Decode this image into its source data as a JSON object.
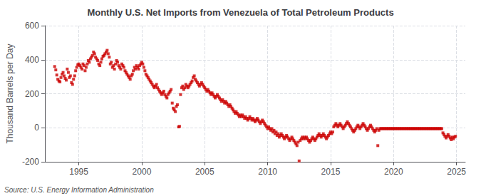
{
  "chart_data": {
    "type": "scatter",
    "title": "Monthly U.S. Net Imports from Venezuela of Total Petroleum Products",
    "ylabel": "Thousand Barrels per Day",
    "annotations": [
      "Source: U.S. Energy Information Administration"
    ],
    "color": "#cc0000",
    "marker": "square",
    "grid": true,
    "xlim": [
      1992.3,
      2025.7
    ],
    "xticks": [
      1995,
      2000,
      2005,
      2010,
      2015,
      2020,
      2025
    ],
    "ylim": [
      -200,
      600
    ],
    "yticks": [
      -200,
      0,
      200,
      400,
      600
    ],
    "x": [
      1993.08,
      1993.17,
      1993.25,
      1993.33,
      1993.42,
      1993.5,
      1993.58,
      1993.67,
      1993.75,
      1993.83,
      1993.92,
      1994.0,
      1994.08,
      1994.17,
      1994.25,
      1994.33,
      1994.42,
      1994.5,
      1994.58,
      1994.67,
      1994.75,
      1994.83,
      1994.92,
      1995.0,
      1995.08,
      1995.17,
      1995.25,
      1995.33,
      1995.42,
      1995.5,
      1995.58,
      1995.67,
      1995.75,
      1995.83,
      1995.92,
      1996.0,
      1996.08,
      1996.17,
      1996.25,
      1996.33,
      1996.42,
      1996.5,
      1996.58,
      1996.67,
      1996.75,
      1996.83,
      1996.92,
      1997.0,
      1997.08,
      1997.17,
      1997.25,
      1997.33,
      1997.42,
      1997.5,
      1997.58,
      1997.67,
      1997.75,
      1997.83,
      1997.92,
      1998.0,
      1998.08,
      1998.17,
      1998.25,
      1998.33,
      1998.42,
      1998.5,
      1998.58,
      1998.67,
      1998.75,
      1998.83,
      1998.92,
      1999.0,
      1999.08,
      1999.17,
      1999.25,
      1999.33,
      1999.42,
      1999.5,
      1999.58,
      1999.67,
      1999.75,
      1999.83,
      1999.92,
      2000.0,
      2000.08,
      2000.17,
      2000.25,
      2000.33,
      2000.42,
      2000.5,
      2000.58,
      2000.67,
      2000.75,
      2000.83,
      2000.92,
      2001.0,
      2001.08,
      2001.17,
      2001.25,
      2001.33,
      2001.42,
      2001.5,
      2001.58,
      2001.67,
      2001.75,
      2001.83,
      2001.92,
      2002.0,
      2002.08,
      2002.17,
      2002.25,
      2002.33,
      2002.42,
      2002.5,
      2002.58,
      2002.67,
      2002.75,
      2002.83,
      2002.92,
      2003.0,
      2003.08,
      2003.17,
      2003.25,
      2003.33,
      2003.42,
      2003.5,
      2003.58,
      2003.67,
      2003.75,
      2003.83,
      2003.92,
      2004.0,
      2004.08,
      2004.17,
      2004.25,
      2004.33,
      2004.42,
      2004.5,
      2004.58,
      2004.67,
      2004.75,
      2004.83,
      2004.92,
      2005.0,
      2005.08,
      2005.17,
      2005.25,
      2005.33,
      2005.42,
      2005.5,
      2005.58,
      2005.67,
      2005.75,
      2005.83,
      2005.92,
      2006.0,
      2006.08,
      2006.17,
      2006.25,
      2006.33,
      2006.42,
      2006.5,
      2006.58,
      2006.67,
      2006.75,
      2006.83,
      2006.92,
      2007.0,
      2007.08,
      2007.17,
      2007.25,
      2007.33,
      2007.42,
      2007.5,
      2007.58,
      2007.67,
      2007.75,
      2007.83,
      2007.92,
      2008.0,
      2008.08,
      2008.17,
      2008.25,
      2008.33,
      2008.42,
      2008.5,
      2008.58,
      2008.67,
      2008.75,
      2008.83,
      2008.92,
      2009.0,
      2009.08,
      2009.17,
      2009.25,
      2009.33,
      2009.42,
      2009.5,
      2009.58,
      2009.67,
      2009.75,
      2009.83,
      2009.92,
      2010.0,
      2010.08,
      2010.17,
      2010.25,
      2010.33,
      2010.42,
      2010.5,
      2010.58,
      2010.67,
      2010.75,
      2010.83,
      2010.92,
      2011.0,
      2011.08,
      2011.17,
      2011.25,
      2011.33,
      2011.42,
      2011.5,
      2011.58,
      2011.67,
      2011.75,
      2011.83,
      2011.92,
      2012.0,
      2012.08,
      2012.17,
      2012.25,
      2012.33,
      2012.42,
      2012.5,
      2012.58,
      2012.67,
      2012.75,
      2012.83,
      2012.92,
      2013.0,
      2013.08,
      2013.17,
      2013.25,
      2013.33,
      2013.42,
      2013.5,
      2013.58,
      2013.67,
      2013.75,
      2013.83,
      2013.92,
      2014.0,
      2014.08,
      2014.17,
      2014.25,
      2014.33,
      2014.42,
      2014.5,
      2014.58,
      2014.67,
      2014.75,
      2014.83,
      2014.92,
      2015.0,
      2015.08,
      2015.17,
      2015.25,
      2015.33,
      2015.42,
      2015.5,
      2015.58,
      2015.67,
      2015.75,
      2015.83,
      2015.92,
      2016.0,
      2016.08,
      2016.17,
      2016.25,
      2016.33,
      2016.42,
      2016.5,
      2016.58,
      2016.67,
      2016.75,
      2016.83,
      2016.92,
      2017.0,
      2017.08,
      2017.17,
      2017.25,
      2017.33,
      2017.42,
      2017.5,
      2017.58,
      2017.67,
      2017.75,
      2017.83,
      2017.92,
      2018.0,
      2018.08,
      2018.17,
      2018.25,
      2018.33,
      2018.42,
      2018.5,
      2018.58,
      2018.67,
      2018.75,
      2018.83,
      2018.92,
      2019.0,
      2019.08,
      2019.17,
      2019.25,
      2019.33,
      2019.42,
      2019.5,
      2019.58,
      2019.67,
      2019.75,
      2019.83,
      2019.92,
      2020.0,
      2020.08,
      2020.17,
      2020.25,
      2020.33,
      2020.42,
      2020.5,
      2020.58,
      2020.67,
      2020.75,
      2020.83,
      2020.92,
      2021.0,
      2021.08,
      2021.17,
      2021.25,
      2021.33,
      2021.42,
      2021.5,
      2021.58,
      2021.67,
      2021.75,
      2021.83,
      2021.92,
      2022.0,
      2022.08,
      2022.17,
      2022.25,
      2022.33,
      2022.42,
      2022.5,
      2022.58,
      2022.67,
      2022.75,
      2022.83,
      2022.92,
      2023.0,
      2023.08,
      2023.17,
      2023.25,
      2023.33,
      2023.42,
      2023.5,
      2023.58,
      2023.67,
      2023.75,
      2023.83,
      2023.92,
      2024.0,
      2024.08,
      2024.17,
      2024.25,
      2024.33,
      2024.42,
      2024.5,
      2024.58,
      2024.67,
      2024.75,
      2024.83,
      2024.92
    ],
    "values": [
      360,
      340,
      310,
      285,
      275,
      270,
      295,
      315,
      325,
      305,
      290,
      280,
      345,
      325,
      295,
      305,
      265,
      255,
      285,
      305,
      335,
      355,
      370,
      375,
      365,
      355,
      345,
      375,
      365,
      335,
      355,
      375,
      395,
      385,
      405,
      415,
      425,
      445,
      435,
      415,
      405,
      395,
      375,
      365,
      385,
      405,
      420,
      425,
      435,
      445,
      455,
      435,
      415,
      375,
      385,
      355,
      365,
      345,
      375,
      395,
      385,
      365,
      355,
      345,
      375,
      365,
      355,
      335,
      325,
      315,
      305,
      295,
      285,
      305,
      315,
      335,
      355,
      345,
      365,
      355,
      345,
      365,
      375,
      385,
      375,
      355,
      335,
      315,
      305,
      295,
      285,
      275,
      265,
      255,
      245,
      235,
      245,
      255,
      235,
      225,
      215,
      205,
      195,
      205,
      215,
      195,
      185,
      175,
      195,
      205,
      215,
      225,
      145,
      115,
      105,
      95,
      125,
      135,
      5,
      8,
      195,
      235,
      245,
      225,
      235,
      255,
      245,
      235,
      245,
      255,
      265,
      275,
      295,
      305,
      285,
      275,
      265,
      255,
      245,
      255,
      265,
      255,
      245,
      235,
      225,
      215,
      225,
      215,
      205,
      195,
      205,
      195,
      185,
      175,
      185,
      195,
      185,
      175,
      165,
      155,
      165,
      155,
      145,
      155,
      145,
      135,
      125,
      135,
      125,
      115,
      105,
      95,
      85,
      95,
      85,
      75,
      65,
      75,
      65,
      75,
      65,
      55,
      65,
      55,
      45,
      55,
      65,
      55,
      45,
      55,
      45,
      35,
      45,
      55,
      45,
      35,
      25,
      35,
      45,
      35,
      25,
      15,
      5,
      -5,
      5,
      -5,
      -15,
      -5,
      -25,
      -15,
      -35,
      -25,
      -45,
      -35,
      -55,
      -45,
      -35,
      -45,
      -55,
      -65,
      -55,
      -45,
      -55,
      -65,
      -75,
      -65,
      -55,
      -65,
      -75,
      -85,
      -95,
      -105,
      -85,
      -195,
      -75,
      -65,
      -55,
      -65,
      -55,
      -65,
      -55,
      -65,
      -75,
      -85,
      -75,
      -65,
      -55,
      -65,
      -75,
      -65,
      -55,
      -45,
      -35,
      -45,
      -55,
      -45,
      -35,
      -45,
      -55,
      -65,
      -55,
      -45,
      -35,
      -25,
      -35,
      -25,
      5,
      15,
      25,
      15,
      5,
      15,
      25,
      15,
      5,
      -5,
      5,
      15,
      25,
      35,
      25,
      15,
      5,
      -5,
      -15,
      -25,
      -15,
      -5,
      5,
      15,
      5,
      -5,
      5,
      15,
      25,
      15,
      5,
      -5,
      -15,
      -5,
      5,
      15,
      5,
      -5,
      -15,
      -25,
      -15,
      -5,
      -105,
      -15,
      -5,
      -5,
      -5,
      -5,
      -5,
      -5,
      -5,
      -5,
      -5,
      -5,
      -5,
      -5,
      -5,
      -5,
      -5,
      -5,
      -5,
      -5,
      -5,
      -5,
      -5,
      -5,
      -5,
      -5,
      -5,
      -5,
      -5,
      -5,
      -5,
      -5,
      -5,
      -5,
      -5,
      -5,
      -5,
      -5,
      -5,
      -5,
      -5,
      -5,
      -5,
      -5,
      -5,
      -5,
      -5,
      -5,
      -5,
      -5,
      -5,
      -5,
      -5,
      -5,
      -5,
      -5,
      -5,
      -5,
      -5,
      -5,
      -5,
      -5,
      -30,
      -40,
      -50,
      -60,
      -50,
      -40,
      -50,
      -60,
      -70,
      -55,
      -65,
      -55,
      -50
    ]
  }
}
